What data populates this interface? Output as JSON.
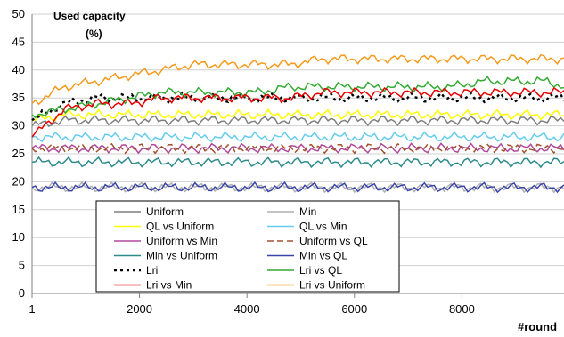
{
  "chart_data": {
    "type": "line",
    "ylabel_line1": "Used capacity",
    "ylabel_line2": "(%)",
    "xlabel": "#round",
    "xlim": [
      1,
      9900
    ],
    "ylim": [
      0,
      50
    ],
    "x_ticks": [
      1,
      2000,
      4000,
      6000,
      8000
    ],
    "x_tick_labels": [
      "1",
      "2000",
      "4000",
      "6000",
      "8000"
    ],
    "y_ticks": [
      0,
      5,
      10,
      15,
      20,
      25,
      30,
      35,
      40,
      45,
      50
    ],
    "y_tick_labels": [
      "0",
      "5",
      "10",
      "15",
      "20",
      "25",
      "30",
      "35",
      "40",
      "45",
      "50"
    ],
    "grid": "horizontal",
    "legend": "lower-left inside plot, two columns",
    "x": [
      1,
      600,
      1200,
      1800,
      2400,
      3000,
      3600,
      4200,
      4800,
      5400,
      6000,
      6600,
      7200,
      7800,
      8400,
      9000,
      9600,
      9900
    ],
    "series": [
      {
        "name": "Uniform",
        "color": "#7f7f7f",
        "style": "solid",
        "values": [
          30,
          31,
          31,
          31,
          31,
          31,
          31,
          31,
          31,
          31,
          31,
          31,
          31,
          31,
          31,
          31,
          31,
          31
        ]
      },
      {
        "name": "Min",
        "color": "#b0b0b0",
        "style": "solid",
        "values": [
          19,
          19,
          19,
          19,
          19,
          19,
          19,
          19,
          19,
          19,
          19,
          19,
          19,
          19,
          19,
          19,
          19,
          19
        ]
      },
      {
        "name": "QL vs Uniform",
        "color": "#ffff00",
        "style": "solid",
        "values": [
          31,
          32,
          32,
          32,
          32,
          32,
          32,
          32,
          32,
          32,
          32,
          32,
          32,
          32,
          32,
          32,
          32,
          32
        ]
      },
      {
        "name": "QL vs Min",
        "color": "#66ccee",
        "style": "solid",
        "values": [
          28,
          28,
          28,
          28,
          28,
          28,
          28,
          28,
          28,
          28,
          28,
          28,
          28,
          28,
          28,
          28,
          28,
          28
        ]
      },
      {
        "name": "Uniform vs Min",
        "color": "#b04a9b",
        "style": "solid",
        "values": [
          26,
          26,
          26,
          26,
          26,
          26,
          26,
          26,
          26,
          26,
          26,
          26,
          26,
          26,
          26,
          26,
          26,
          26
        ]
      },
      {
        "name": "Uniform vs QL",
        "color": "#a0522d",
        "style": "dashed",
        "values": [
          26,
          26,
          26,
          26,
          26,
          26,
          26,
          26,
          26,
          26,
          26,
          26,
          26,
          26,
          26,
          26,
          26,
          26
        ]
      },
      {
        "name": "Min vs Uniform",
        "color": "#2e8b8b",
        "style": "solid",
        "values": [
          23.5,
          23.5,
          23.5,
          23.5,
          23.5,
          23.5,
          23.5,
          23.5,
          23.5,
          23.5,
          23.5,
          23.5,
          23.5,
          23.5,
          23.5,
          23.5,
          23.5,
          23.5
        ]
      },
      {
        "name": "Min vs QL",
        "color": "#3a45a8",
        "style": "solid",
        "values": [
          19,
          19,
          19,
          19,
          19,
          19,
          19,
          19,
          19,
          19,
          19,
          19,
          19,
          19,
          19,
          19,
          19,
          19
        ]
      },
      {
        "name": "Lri",
        "color": "#000000",
        "style": "dotted",
        "values": [
          31,
          34,
          35,
          35,
          35,
          35,
          35,
          35,
          35,
          35,
          35,
          35,
          35,
          35,
          35,
          35,
          35,
          35
        ]
      },
      {
        "name": "Lri vs QL",
        "color": "#33aa33",
        "style": "solid",
        "values": [
          32,
          33,
          34,
          35,
          36,
          36,
          36,
          36,
          37,
          37,
          37,
          37,
          37,
          37,
          38,
          38,
          38,
          37
        ]
      },
      {
        "name": "Lri vs Min",
        "color": "#e60000",
        "style": "solid",
        "values": [
          28,
          33,
          34,
          34,
          35,
          35,
          35,
          35,
          35,
          36,
          36,
          36,
          36,
          36,
          36,
          36,
          36,
          36
        ]
      },
      {
        "name": "Lri vs Uniform",
        "color": "#f59a1b",
        "style": "solid",
        "values": [
          34,
          37,
          38,
          39,
          40,
          41,
          41,
          41,
          41,
          42,
          42,
          42,
          42,
          42,
          42,
          42,
          42,
          42
        ]
      }
    ]
  }
}
